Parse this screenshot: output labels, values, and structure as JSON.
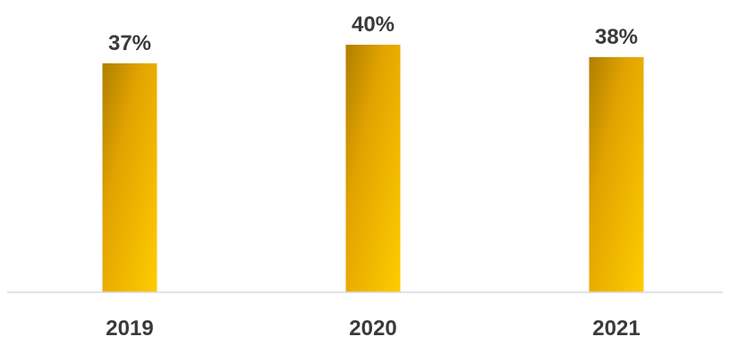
{
  "chart_data": {
    "type": "bar",
    "categories": [
      "2019",
      "2020",
      "2021"
    ],
    "values": [
      37,
      40,
      38
    ],
    "value_labels": [
      "37%",
      "40%",
      "38%"
    ],
    "ylim": [
      0,
      40
    ],
    "grid": false,
    "legend": "none",
    "colors": {
      "bar_dark": "#b07f00",
      "bar_mid": "#e1a300",
      "bar_light": "#ffcc00",
      "label": "#3a3a3a",
      "axis": "#d9d9d9"
    }
  }
}
